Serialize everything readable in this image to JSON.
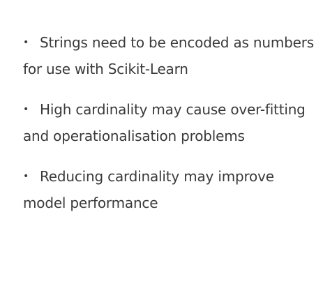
{
  "bullets": [
    {
      "marker": "•",
      "text": "Strings need to be encoded as numbers for use with Scikit-Learn"
    },
    {
      "marker": "•",
      "text": "High cardinality may cause over-fitting and operationalisation problems"
    },
    {
      "marker": "•",
      "text": "Reducing cardinality may improve model performance"
    }
  ]
}
